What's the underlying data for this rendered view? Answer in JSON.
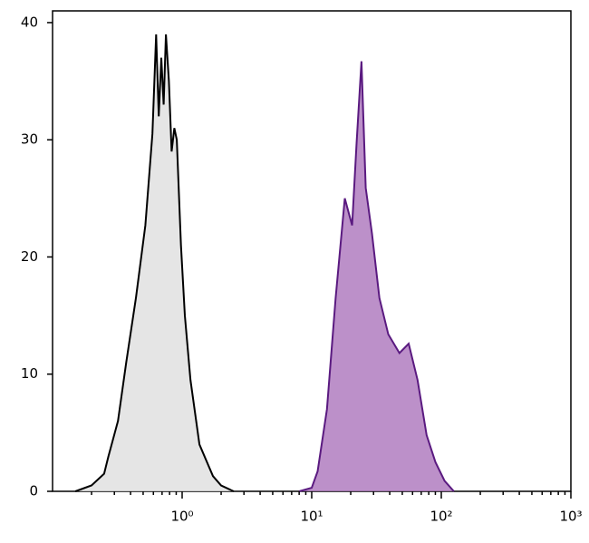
{
  "chart_data": {
    "type": "area",
    "log_x": true,
    "xlim": [
      0.1,
      1000
    ],
    "ylim": [
      0,
      41
    ],
    "xticks": [
      {
        "value": 1,
        "label": "10⁰"
      },
      {
        "value": 10,
        "label": "10¹"
      },
      {
        "value": 100,
        "label": "10²"
      },
      {
        "value": 1000,
        "label": "10³"
      }
    ],
    "xminor_ticks": [
      0.2,
      0.3,
      0.4,
      0.5,
      0.6,
      0.7,
      0.8,
      0.9,
      2,
      3,
      4,
      5,
      6,
      7,
      8,
      9,
      20,
      30,
      40,
      50,
      60,
      70,
      80,
      90,
      200,
      300,
      400,
      500,
      600,
      700,
      800,
      900
    ],
    "yticks": [
      0,
      10,
      20,
      30,
      40
    ],
    "series": [
      {
        "color": "#e0e0e0",
        "line_color": "#000000",
        "x": [
          0.15,
          0.2,
          0.25,
          0.27,
          0.32,
          0.37,
          0.44,
          0.52,
          0.59,
          0.63,
          0.66,
          0.69,
          0.72,
          0.75,
          0.79,
          0.83,
          0.87,
          0.91,
          0.98,
          1.05,
          1.16,
          1.36,
          1.73,
          2.0,
          2.5
        ],
        "values": [
          0,
          0.5,
          1.5,
          3,
          6,
          11,
          16.5,
          22.7,
          30.5,
          39,
          32,
          37,
          33,
          39,
          35,
          29,
          31,
          30,
          21,
          15,
          9.5,
          4,
          1.3,
          0.5,
          0
        ]
      },
      {
        "color": "#b07cc0",
        "line_color": "#5a1a80",
        "x": [
          8,
          10,
          11.1,
          13.1,
          15.3,
          18,
          20.5,
          22.2,
          24.2,
          26.1,
          29.2,
          33.3,
          39,
          47.5,
          56,
          65.6,
          77,
          90,
          106,
          125
        ],
        "values": [
          0,
          0.3,
          1.7,
          7,
          16.5,
          25,
          22.7,
          29.7,
          36.7,
          25.9,
          22,
          16.5,
          13.4,
          11.8,
          12.6,
          9.5,
          4.8,
          2.5,
          0.9,
          0
        ]
      }
    ]
  }
}
